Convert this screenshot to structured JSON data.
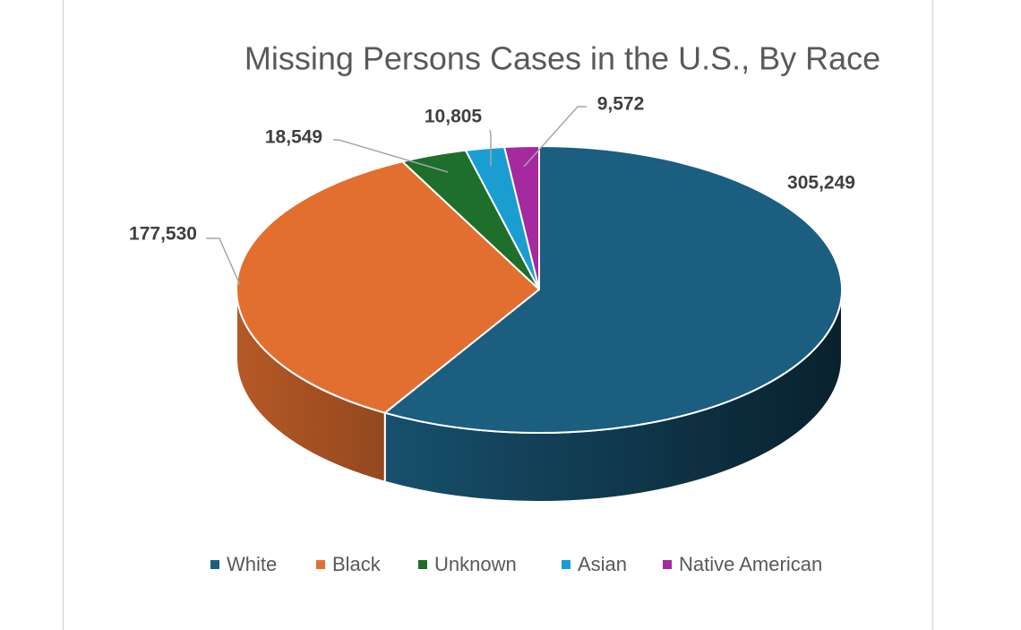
{
  "chart_data": {
    "type": "pie",
    "title": "Missing Persons Cases in the U.S., By Race",
    "categories": [
      "White",
      "Black",
      "Unknown",
      "Asian",
      "Native American"
    ],
    "values": [
      305249,
      177530,
      18549,
      10805,
      9572
    ],
    "value_labels": [
      "305,249",
      "177,530",
      "18,549",
      "10,805",
      "9,572"
    ],
    "colors": [
      "#1b5e80",
      "#e26f2f",
      "#1e6e2c",
      "#1a9ed2",
      "#a5299f"
    ],
    "legend": "bottom"
  }
}
